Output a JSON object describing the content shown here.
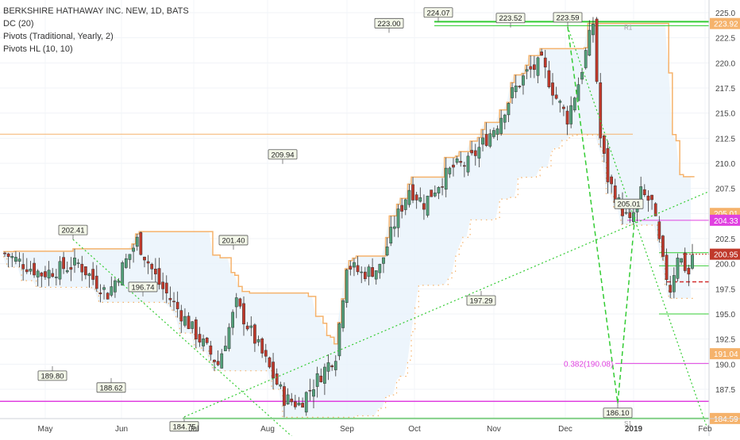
{
  "legend": {
    "title": "BERKSHIRE HATHAWAY INC. NEW, 1D, BATS",
    "line1": "DC (20)",
    "line2": "Pivots (Traditional, Yearly, 2)",
    "line3": "Pivots HL (10, 10)"
  },
  "colors": {
    "up": "#52a07a",
    "down": "#c0392b",
    "donchian": "#f5b26b",
    "donchian_fill": "#e8f2fb",
    "pivot_green": "#33cc33",
    "pivot_magenta": "#e040e0",
    "red_dash": "#d32f2f",
    "axis_text": "#444444"
  },
  "chart_data": {
    "type": "candlestick",
    "ylim": [
      183.5,
      226
    ],
    "y_ticks": [
      187.5,
      190.0,
      192.5,
      195.0,
      197.5,
      200.0,
      202.5,
      205.0,
      207.5,
      210.0,
      212.5,
      215.0,
      217.5,
      220.0,
      222.5,
      225.0
    ],
    "x_labels": [
      "May",
      "Jun",
      "Jul",
      "Aug",
      "Sep",
      "Oct",
      "Nov",
      "Dec",
      "2019",
      "Feb"
    ],
    "price_labels": [
      {
        "text": "223.92",
        "value": 223.92,
        "color": "#f5b26b"
      },
      {
        "text": "205.01",
        "value": 205.01,
        "color": "#f5b26b"
      },
      {
        "text": "204.33",
        "value": 204.33,
        "color": "#e040e0"
      },
      {
        "text": "200.95",
        "value": 200.95,
        "color": "#c0392b"
      },
      {
        "text": "191.04",
        "value": 191.04,
        "color": "#f5b26b"
      },
      {
        "text": "184.59",
        "value": 184.59,
        "color": "#f5b26b"
      }
    ],
    "pivot_hl": [
      {
        "text": "202.41"
      },
      {
        "text": "189.80"
      },
      {
        "text": "196.74"
      },
      {
        "text": "188.62"
      },
      {
        "text": "184.75"
      },
      {
        "text": "201.40"
      },
      {
        "text": "209.94"
      },
      {
        "text": "223.00"
      },
      {
        "text": "224.07"
      },
      {
        "text": "223.52"
      },
      {
        "text": "197.29"
      },
      {
        "text": "223.59"
      },
      {
        "text": "186.10"
      },
      {
        "text": "205.01"
      }
    ],
    "fib_label": "0.382(190.08)",
    "levels": [
      {
        "value": 223.92,
        "color": "#33cc33"
      },
      {
        "value": 186.3,
        "color": "#e040e0"
      },
      {
        "value": 184.59,
        "color": "#33cc33"
      }
    ]
  }
}
